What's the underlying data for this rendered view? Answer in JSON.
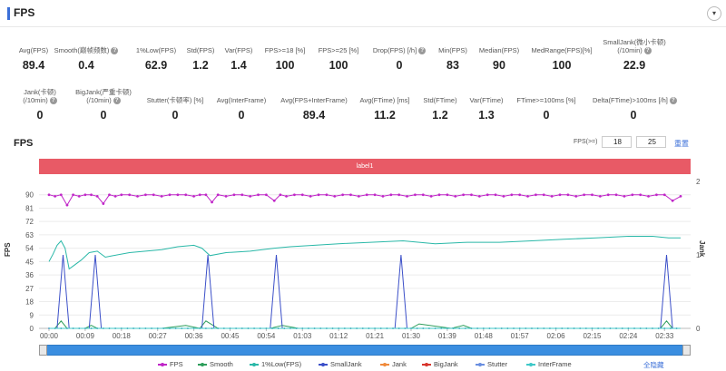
{
  "header": {
    "title": "FPS",
    "collapse_icon": "▾"
  },
  "metrics_row1": [
    {
      "label": "Avg(FPS)",
      "value": "89.4",
      "help": false
    },
    {
      "label": "Smooth(巅帧频数)",
      "value": "0.4",
      "help": true
    },
    {
      "label": "1%Low(FPS)",
      "value": "62.9",
      "help": false
    },
    {
      "label": "Std(FPS)",
      "value": "1.2",
      "help": false
    },
    {
      "label": "Var(FPS)",
      "value": "1.4",
      "help": false
    },
    {
      "label": "FPS>=18 [%]",
      "value": "100",
      "help": false
    },
    {
      "label": "FPS>=25 [%]",
      "value": "100",
      "help": false
    },
    {
      "label": "Drop(FPS) [/h]",
      "value": "0",
      "help": true
    },
    {
      "label": "Min(FPS)",
      "value": "83",
      "help": false
    },
    {
      "label": "Median(FPS)",
      "value": "90",
      "help": false
    },
    {
      "label": "MedRange(FPS)[%]",
      "value": "100",
      "help": false
    },
    {
      "label_line1": "SmallJank(微小卡顿)",
      "label": "(/10min)",
      "value": "22.9",
      "help": true
    }
  ],
  "metrics_row2": [
    {
      "label_line1": "Jank(卡顿)",
      "label": "(/10min)",
      "value": "0",
      "help": true
    },
    {
      "label_line1": "BigJank(严重卡顿)",
      "label": "(/10min)",
      "value": "0",
      "help": true
    },
    {
      "label": "Stutter(卡顿率) [%]",
      "value": "0",
      "help": false
    },
    {
      "label": "Avg(InterFrame)",
      "value": "0",
      "help": false
    },
    {
      "label": "Avg(FPS+InterFrame)",
      "value": "89.4",
      "help": false
    },
    {
      "label": "Avg(FTime) [ms]",
      "value": "11.2",
      "help": false
    },
    {
      "label": "Std(FTime)",
      "value": "1.2",
      "help": false
    },
    {
      "label": "Var(FTime)",
      "value": "1.3",
      "help": false
    },
    {
      "label": "FTime>=100ms [%]",
      "value": "0",
      "help": false
    },
    {
      "label": "Delta(FTime)>100ms [/h]",
      "value": "0",
      "help": true
    }
  ],
  "chart_section": {
    "title": "FPS",
    "fps_filter_label": "FPS(>=)",
    "fps_filter_low": "18",
    "fps_filter_high": "25",
    "reset_label": "重置",
    "label_bar": "label1"
  },
  "chart_data": {
    "type": "line",
    "ylabel_left": "FPS",
    "ylabel_right": "Jank",
    "y_ticks_left": [
      "0",
      "9",
      "18",
      "27",
      "36",
      "45",
      "54",
      "63",
      "72",
      "81",
      "90"
    ],
    "y_ticks_right": [
      "0",
      "1",
      "2"
    ],
    "ylim_left": [
      0,
      99
    ],
    "ylim_right": [
      0,
      2
    ],
    "x_ticks": [
      "00:00",
      "00:09",
      "00:18",
      "00:27",
      "00:36",
      "00:45",
      "00:54",
      "01:03",
      "01:12",
      "01:21",
      "01:30",
      "01:39",
      "01:48",
      "01:57",
      "02:06",
      "02:15",
      "02:24",
      "02:33"
    ],
    "x_range_seconds": [
      0,
      157
    ],
    "series": [
      {
        "name": "FPS",
        "color": "#c026c8",
        "axis": "left",
        "x": [
          0,
          1.5,
          3,
          4.5,
          6,
          7.5,
          9,
          10.5,
          12,
          13.5,
          15,
          16.5,
          18,
          20,
          22,
          24,
          26,
          28,
          30,
          32,
          34,
          36,
          37.5,
          39,
          40.5,
          42,
          44,
          46,
          48,
          50,
          52,
          54,
          56,
          57.5,
          59,
          61,
          63,
          65,
          67,
          69,
          71,
          73,
          75,
          77,
          79,
          81,
          83,
          85,
          87,
          89,
          91,
          93,
          95,
          97,
          99,
          101,
          103,
          105,
          107,
          109,
          111,
          113,
          115,
          117,
          119,
          121,
          123,
          125,
          127,
          129,
          131,
          133,
          135,
          137,
          139,
          141,
          143,
          145,
          147,
          149,
          151,
          153,
          155,
          157
        ],
        "values": [
          90,
          89,
          90,
          83,
          90,
          89,
          90,
          90,
          89,
          84,
          90,
          89,
          90,
          90,
          89,
          90,
          90,
          89,
          90,
          90,
          90,
          89,
          90,
          90,
          85,
          90,
          89,
          90,
          90,
          89,
          90,
          90,
          86,
          90,
          89,
          90,
          90,
          89,
          90,
          90,
          89,
          90,
          90,
          89,
          90,
          90,
          89,
          90,
          90,
          89,
          90,
          90,
          89,
          90,
          90,
          89,
          90,
          90,
          89,
          90,
          90,
          89,
          90,
          90,
          89,
          90,
          90,
          89,
          90,
          90,
          89,
          90,
          90,
          89,
          90,
          90,
          89,
          90,
          90,
          89,
          90,
          90,
          86,
          89
        ]
      },
      {
        "name": "Smooth",
        "color": "#2e9e5b",
        "axis": "left",
        "x": [
          0,
          1.5,
          3,
          4.5,
          6,
          9,
          10.5,
          12,
          20,
          28,
          34,
          37.5,
          39,
          42,
          55,
          58,
          62,
          70,
          90,
          92,
          100,
          103,
          105,
          120,
          140,
          152,
          153.5,
          155,
          157
        ],
        "values": [
          0,
          0,
          5,
          0,
          0,
          0,
          2,
          0,
          0,
          0,
          2,
          0,
          5,
          0,
          0,
          2,
          0,
          0,
          0,
          3,
          0,
          2,
          0,
          0,
          0,
          0,
          5,
          0,
          0
        ]
      },
      {
        "name": "1%Low(FPS)",
        "color": "#2ab8a8",
        "axis": "left",
        "x": [
          0,
          1,
          2,
          3,
          4,
          5,
          6,
          8,
          10,
          12,
          14,
          16,
          20,
          24,
          28,
          32,
          36,
          38,
          40,
          44,
          50,
          56,
          60,
          66,
          72,
          80,
          88,
          96,
          104,
          112,
          120,
          128,
          136,
          144,
          150,
          154,
          157
        ],
        "values": [
          45,
          50,
          56,
          59,
          54,
          40,
          42,
          46,
          51,
          52,
          48,
          49,
          51,
          52,
          53,
          55,
          56,
          54,
          49,
          51,
          52,
          54,
          55,
          56,
          57,
          58,
          59,
          57,
          58,
          58,
          59,
          60,
          61,
          62,
          62,
          61,
          61
        ]
      },
      {
        "name": "SmallJank",
        "color": "#3b4fc8",
        "axis": "right",
        "x": [
          0,
          2,
          3.5,
          5,
          10,
          11.5,
          13,
          38,
          39.5,
          41,
          55,
          56.5,
          58,
          86,
          87.5,
          89,
          152,
          153.5,
          155,
          157
        ],
        "values": [
          0,
          0,
          1,
          0,
          0,
          1,
          0,
          0,
          1,
          0,
          0,
          1,
          0,
          0,
          1,
          0,
          0,
          1,
          0,
          0
        ]
      },
      {
        "name": "Jank",
        "color": "#f08a3c",
        "axis": "right",
        "x": [
          0,
          157
        ],
        "values": [
          0,
          0
        ]
      },
      {
        "name": "BigJank",
        "color": "#d8342c",
        "axis": "right",
        "x": [
          0,
          157
        ],
        "values": [
          0,
          0
        ]
      },
      {
        "name": "Stutter",
        "color": "#6a8fe0",
        "axis": "right",
        "x": [
          0,
          157
        ],
        "values": [
          0,
          0
        ]
      },
      {
        "name": "InterFrame",
        "color": "#3ec8c8",
        "axis": "left",
        "x": [
          0,
          157
        ],
        "values": [
          0,
          0
        ]
      }
    ],
    "legend_placement": "bottom",
    "grid": true
  },
  "legend": {
    "hide_all_label": "全隐藏"
  },
  "colors": {
    "accent": "#3b6fd8",
    "label_bar": "#e85a66",
    "scrollbar": "#3a8ee0"
  }
}
